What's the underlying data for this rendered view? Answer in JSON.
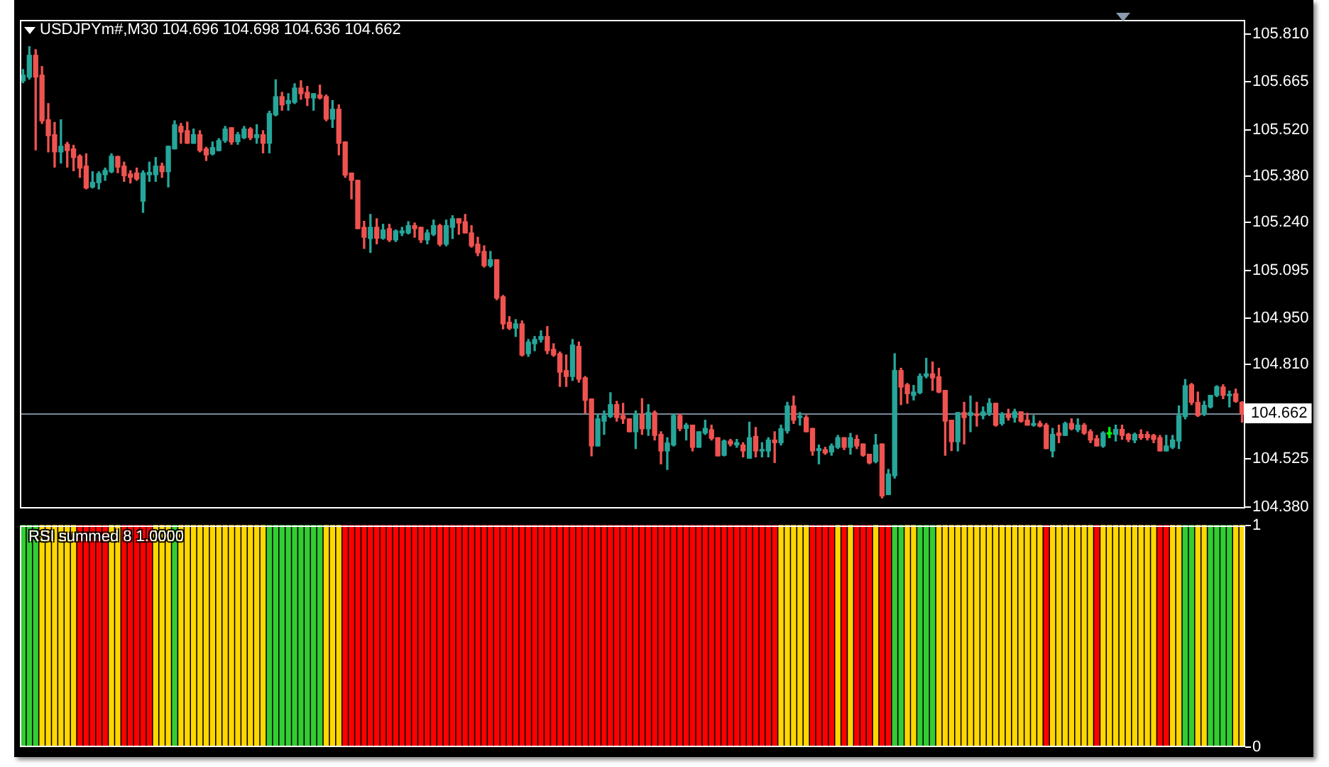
{
  "chart_data": [
    {
      "type": "candlestick",
      "title": "USDJPYm#,M30 104.696 104.698 104.636 104.662",
      "categories": [
        null,
        null,
        null,
        null,
        null,
        null,
        null,
        null,
        null,
        null,
        null,
        null,
        null,
        null,
        null,
        null,
        null,
        null,
        null,
        null,
        null,
        null,
        null,
        null,
        null,
        null,
        null,
        null,
        null,
        null,
        null,
        null,
        null,
        null,
        null,
        null,
        null,
        null,
        null,
        null,
        null,
        null,
        null,
        null,
        null,
        null,
        null,
        null,
        null,
        null,
        null,
        null,
        null,
        null,
        null,
        null,
        null,
        null,
        null,
        null,
        null,
        null,
        null,
        null,
        null,
        null,
        null,
        null,
        null,
        null,
        null,
        null,
        null,
        null,
        null,
        null,
        null,
        null,
        null,
        null,
        null,
        null,
        null,
        null,
        null,
        null,
        null,
        null,
        null,
        null,
        null,
        null,
        null,
        null,
        null,
        null,
        null,
        null,
        null,
        null,
        null,
        null,
        null,
        null,
        null,
        null,
        null,
        null,
        null,
        null,
        null,
        null,
        null,
        null,
        null,
        null,
        null,
        null,
        null,
        null,
        null,
        null,
        null,
        null,
        null,
        null,
        null,
        null,
        null,
        null,
        null,
        null,
        null,
        null,
        null,
        null,
        null,
        null,
        null,
        null,
        null,
        null,
        null,
        null,
        null,
        null,
        null,
        null,
        null,
        null,
        null,
        null,
        null,
        null,
        null,
        null,
        null,
        null,
        null,
        null,
        null,
        null,
        null,
        null,
        null,
        null,
        null,
        null,
        null,
        null,
        null,
        null,
        null,
        null,
        null,
        null,
        null,
        null,
        null,
        null,
        null,
        null,
        null,
        null,
        null,
        null,
        null,
        null,
        null,
        null,
        null,
        null,
        null,
        null
      ],
      "ohlc": [
        [
          105.668,
          105.702,
          105.662,
          105.685
        ],
        [
          105.679,
          105.771,
          105.673,
          105.745
        ],
        [
          105.745,
          105.762,
          105.459,
          105.679
        ],
        [
          105.685,
          105.711,
          105.539,
          105.547
        ],
        [
          105.55,
          105.599,
          105.453,
          105.502
        ],
        [
          105.505,
          105.542,
          105.407,
          105.453
        ],
        [
          105.453,
          105.55,
          105.419,
          105.47
        ],
        [
          105.476,
          105.482,
          105.407,
          105.457
        ],
        [
          105.462,
          105.473,
          105.396,
          105.436
        ],
        [
          105.44,
          105.444,
          105.376,
          105.404
        ],
        [
          105.41,
          105.447,
          105.341,
          105.344
        ],
        [
          105.347,
          105.393,
          105.344,
          105.361
        ],
        [
          105.36,
          105.393,
          105.341,
          105.387
        ],
        [
          105.384,
          105.404,
          105.367,
          105.397
        ],
        [
          105.393,
          105.447,
          105.39,
          105.44
        ],
        [
          105.439,
          105.44,
          105.39,
          105.407
        ],
        [
          105.41,
          105.422,
          105.364,
          105.381
        ],
        [
          105.386,
          105.396,
          105.359,
          105.376
        ],
        [
          105.389,
          105.404,
          105.367,
          105.371
        ],
        [
          105.304,
          105.396,
          105.27,
          105.389
        ],
        [
          105.384,
          105.422,
          105.364,
          105.391
        ],
        [
          105.384,
          105.436,
          105.364,
          105.41
        ],
        [
          105.41,
          105.419,
          105.376,
          105.393
        ],
        [
          105.393,
          105.47,
          105.347,
          105.47
        ],
        [
          105.462,
          105.547,
          105.462,
          105.535
        ],
        [
          105.53,
          105.539,
          105.479,
          105.513
        ],
        [
          105.517,
          105.543,
          105.479,
          105.479
        ],
        [
          105.479,
          105.522,
          105.479,
          105.505
        ],
        [
          105.505,
          105.517,
          105.453,
          105.457
        ],
        [
          105.462,
          105.467,
          105.427,
          105.444
        ],
        [
          105.447,
          105.483,
          105.444,
          105.466
        ],
        [
          105.457,
          105.493,
          105.456,
          105.487
        ],
        [
          105.487,
          105.53,
          105.482,
          105.522
        ],
        [
          105.526,
          105.526,
          105.476,
          105.483
        ],
        [
          105.484,
          105.512,
          105.476,
          105.505
        ],
        [
          105.496,
          105.53,
          105.493,
          105.522
        ],
        [
          105.522,
          105.526,
          105.49,
          105.496
        ],
        [
          105.496,
          105.535,
          105.479,
          105.505
        ],
        [
          105.505,
          105.517,
          105.45,
          105.479
        ],
        [
          105.479,
          105.576,
          105.45,
          105.569
        ],
        [
          105.565,
          105.671,
          105.562,
          105.62
        ],
        [
          105.62,
          105.633,
          105.579,
          105.595
        ],
        [
          105.599,
          105.629,
          105.579,
          105.608
        ],
        [
          105.603,
          105.659,
          105.599,
          105.646
        ],
        [
          105.646,
          105.668,
          105.612,
          105.629
        ],
        [
          105.633,
          105.651,
          105.593,
          105.616
        ],
        [
          105.616,
          105.629,
          105.579,
          105.629
        ],
        [
          105.625,
          105.655,
          105.613,
          105.616
        ],
        [
          105.62,
          105.625,
          105.547,
          105.552
        ],
        [
          105.552,
          105.608,
          105.527,
          105.582
        ],
        [
          105.582,
          105.595,
          105.444,
          105.479
        ],
        [
          105.483,
          105.483,
          105.376,
          105.383
        ],
        [
          105.389,
          105.389,
          105.311,
          105.367
        ],
        [
          105.367,
          105.367,
          105.221,
          105.221
        ],
        [
          105.225,
          105.243,
          105.161,
          105.195
        ],
        [
          105.191,
          105.264,
          105.149,
          105.225
        ],
        [
          105.225,
          105.251,
          105.175,
          105.192
        ],
        [
          105.192,
          105.234,
          105.189,
          105.217
        ],
        [
          105.221,
          105.234,
          105.182,
          105.187
        ],
        [
          105.187,
          105.217,
          105.182,
          105.214
        ],
        [
          105.208,
          105.225,
          105.2,
          105.214
        ],
        [
          105.208,
          105.242,
          105.205,
          105.23
        ],
        [
          105.23,
          105.238,
          105.195,
          105.221
        ],
        [
          105.225,
          105.225,
          105.179,
          105.187
        ],
        [
          105.187,
          105.217,
          105.175,
          105.208
        ],
        [
          105.204,
          105.247,
          105.2,
          105.23
        ],
        [
          105.23,
          105.234,
          105.169,
          105.174
        ],
        [
          105.174,
          105.247,
          105.169,
          105.23
        ],
        [
          105.225,
          105.26,
          105.191,
          105.251
        ],
        [
          105.251,
          105.251,
          105.204,
          105.238
        ],
        [
          105.242,
          105.264,
          105.208,
          105.208
        ],
        [
          105.208,
          105.23,
          105.165,
          105.169
        ],
        [
          105.174,
          105.195,
          105.139,
          105.148
        ],
        [
          105.152,
          105.169,
          105.105,
          105.109
        ],
        [
          105.109,
          105.152,
          105.105,
          105.127
        ],
        [
          105.127,
          105.127,
          105.006,
          105.011
        ],
        [
          105.015,
          105.019,
          104.918,
          104.933
        ],
        [
          104.938,
          104.955,
          104.916,
          104.92
        ],
        [
          104.92,
          104.946,
          104.895,
          104.933
        ],
        [
          104.933,
          104.942,
          104.836,
          104.839
        ],
        [
          104.843,
          104.886,
          104.835,
          104.878
        ],
        [
          104.873,
          104.895,
          104.852,
          104.886
        ],
        [
          104.886,
          104.912,
          104.878,
          104.895
        ],
        [
          104.895,
          104.925,
          104.843,
          104.852
        ],
        [
          104.856,
          104.873,
          104.835,
          104.839
        ],
        [
          104.843,
          104.848,
          104.744,
          104.787
        ],
        [
          104.792,
          104.839,
          104.744,
          104.774
        ],
        [
          104.774,
          104.886,
          104.762,
          104.869
        ],
        [
          104.865,
          104.878,
          104.757,
          104.766
        ],
        [
          104.77,
          104.774,
          104.663,
          104.702
        ],
        [
          104.706,
          104.706,
          104.534,
          104.564
        ],
        [
          104.564,
          104.659,
          104.564,
          104.646
        ],
        [
          104.639,
          104.67,
          104.599,
          104.656
        ],
        [
          104.653,
          104.725,
          104.65,
          104.689
        ],
        [
          104.689,
          104.699,
          104.639,
          104.65
        ],
        [
          104.656,
          104.693,
          104.632,
          104.646
        ],
        [
          104.646,
          104.646,
          104.607,
          104.607
        ],
        [
          104.607,
          104.67,
          104.556,
          104.66
        ],
        [
          104.66,
          104.707,
          104.599,
          104.616
        ],
        [
          104.616,
          104.689,
          104.596,
          104.665
        ],
        [
          104.665,
          104.67,
          104.582,
          104.596
        ],
        [
          104.599,
          104.607,
          104.51,
          104.549
        ],
        [
          104.549,
          104.589,
          104.493,
          104.573
        ],
        [
          104.567,
          104.66,
          104.564,
          104.656
        ],
        [
          104.656,
          104.66,
          104.61,
          104.617
        ],
        [
          104.617,
          104.632,
          104.582,
          104.627
        ],
        [
          104.627,
          104.627,
          104.549,
          104.56
        ],
        [
          104.56,
          104.607,
          104.56,
          104.607
        ],
        [
          104.603,
          104.642,
          104.599,
          104.617
        ],
        [
          104.613,
          104.627,
          104.582,
          104.587
        ],
        [
          104.589,
          104.589,
          104.534,
          104.534
        ],
        [
          104.536,
          104.582,
          104.534,
          104.579
        ],
        [
          104.579,
          104.584,
          104.564,
          104.57
        ],
        [
          104.567,
          104.584,
          104.56,
          104.574
        ],
        [
          104.567,
          104.574,
          104.531,
          104.549
        ],
        [
          104.527,
          104.636,
          104.527,
          104.589
        ],
        [
          104.593,
          104.62,
          104.531,
          104.549
        ],
        [
          104.549,
          104.574,
          104.531,
          104.551
        ],
        [
          104.549,
          104.589,
          104.531,
          104.582
        ],
        [
          104.582,
          104.607,
          104.514,
          104.574
        ],
        [
          104.574,
          104.627,
          104.567,
          104.616
        ],
        [
          104.61,
          104.696,
          104.603,
          104.685
        ],
        [
          104.685,
          104.715,
          104.632,
          104.642
        ],
        [
          104.65,
          104.665,
          104.627,
          104.653
        ],
        [
          104.65,
          104.656,
          104.607,
          104.607
        ],
        [
          104.617,
          104.617,
          104.536,
          104.549
        ],
        [
          104.55,
          104.567,
          104.51,
          104.556
        ],
        [
          104.553,
          104.56,
          104.539,
          104.543
        ],
        [
          104.546,
          104.57,
          104.536,
          104.564
        ],
        [
          104.56,
          104.596,
          104.556,
          104.589
        ],
        [
          104.589,
          104.589,
          104.553,
          104.56
        ],
        [
          104.56,
          104.602,
          104.539,
          104.589
        ],
        [
          104.584,
          104.596,
          104.556,
          104.564
        ],
        [
          104.57,
          104.57,
          104.533,
          104.536
        ],
        [
          104.539,
          104.539,
          104.51,
          104.513
        ],
        [
          104.517,
          104.599,
          104.513,
          104.567
        ],
        [
          104.57,
          104.57,
          104.407,
          104.413
        ],
        [
          104.417,
          104.493,
          104.417,
          104.479
        ],
        [
          104.474,
          104.843,
          104.467,
          104.792
        ],
        [
          104.792,
          104.799,
          104.689,
          104.742
        ],
        [
          104.749,
          104.753,
          104.693,
          104.722
        ],
        [
          104.717,
          104.747,
          104.703,
          104.727
        ],
        [
          104.725,
          104.782,
          104.722,
          104.775
        ],
        [
          104.775,
          104.829,
          104.77,
          104.782
        ],
        [
          104.782,
          104.818,
          104.732,
          104.77
        ],
        [
          104.773,
          104.799,
          104.725,
          104.727
        ],
        [
          104.732,
          104.732,
          104.536,
          104.639
        ],
        [
          104.642,
          104.642,
          104.55,
          104.577
        ],
        [
          104.577,
          104.665,
          104.549,
          104.665
        ],
        [
          104.665,
          104.696,
          104.57,
          104.65
        ],
        [
          104.656,
          104.715,
          104.607,
          104.665
        ],
        [
          104.66,
          104.696,
          104.624,
          104.656
        ],
        [
          104.656,
          104.682,
          104.646,
          104.667
        ],
        [
          104.665,
          104.707,
          104.656,
          104.693
        ],
        [
          104.693,
          104.693,
          104.624,
          104.627
        ],
        [
          104.632,
          104.665,
          104.627,
          104.66
        ],
        [
          104.66,
          104.675,
          104.642,
          104.65
        ],
        [
          104.65,
          104.675,
          104.636,
          104.667
        ],
        [
          104.667,
          104.667,
          104.636,
          104.639
        ],
        [
          104.642,
          104.663,
          104.627,
          104.627
        ],
        [
          104.627,
          104.656,
          104.624,
          104.632
        ],
        [
          104.632,
          104.639,
          104.622,
          104.624
        ],
        [
          104.627,
          104.632,
          104.556,
          104.556
        ],
        [
          104.549,
          104.617,
          104.531,
          104.599
        ],
        [
          104.603,
          104.627,
          104.574,
          104.596
        ],
        [
          104.596,
          104.636,
          104.596,
          104.632
        ],
        [
          104.632,
          104.646,
          104.613,
          104.616
        ],
        [
          104.613,
          104.646,
          104.607,
          104.627
        ],
        [
          104.627,
          104.632,
          104.599,
          104.603
        ],
        [
          104.607,
          104.613,
          104.574,
          104.582
        ],
        [
          104.586,
          104.596,
          104.564,
          104.564
        ],
        [
          104.564,
          104.607,
          104.56,
          104.603
        ],
        [
          104.6,
          104.62,
          104.589,
          104.6
        ],
        [
          104.599,
          104.627,
          104.579,
          104.614
        ],
        [
          104.614,
          104.627,
          104.584,
          104.596
        ],
        [
          104.599,
          104.602,
          104.577,
          104.584
        ],
        [
          104.582,
          104.603,
          104.574,
          104.599
        ],
        [
          104.599,
          104.613,
          104.584,
          104.589
        ],
        [
          104.599,
          104.607,
          104.582,
          104.589
        ],
        [
          104.596,
          104.599,
          104.574,
          104.584
        ],
        [
          104.589,
          104.596,
          104.549,
          104.549
        ],
        [
          104.549,
          104.596,
          104.549,
          104.564
        ],
        [
          104.56,
          104.596,
          104.556,
          104.582
        ],
        [
          104.579,
          104.685,
          104.556,
          104.656
        ],
        [
          104.653,
          104.765,
          104.646,
          104.746
        ],
        [
          104.749,
          104.753,
          104.689,
          104.696
        ],
        [
          104.696,
          104.727,
          104.653,
          104.656
        ],
        [
          104.66,
          104.699,
          104.656,
          104.687
        ],
        [
          104.682,
          104.717,
          104.679,
          104.717
        ],
        [
          104.717,
          104.746,
          104.713,
          104.743
        ],
        [
          104.742,
          104.749,
          104.707,
          104.717
        ],
        [
          104.716,
          104.73,
          104.682,
          104.719
        ],
        [
          104.722,
          104.736,
          104.696,
          104.699
        ],
        [
          104.696,
          104.698,
          104.636,
          104.662
        ]
      ],
      "colors": [
        "#26a69a",
        "#26a69a",
        "#ef5350",
        "#ef5350",
        "#ef5350",
        "#ef5350",
        "#26a69a",
        "#ef5350",
        "#ef5350",
        "#ef5350",
        "#ef5350",
        "#26a69a",
        "#26a69a",
        "#26a69a",
        "#26a69a",
        "#ef5350",
        "#ef5350",
        "#ef5350",
        "#ef5350",
        "#26a69a",
        "#26a69a",
        "#26a69a",
        "#ef5350",
        "#26a69a",
        "#26a69a",
        "#ef5350",
        "#ef5350",
        "#26a69a",
        "#ef5350",
        "#ef5350",
        "#26a69a",
        "#26a69a",
        "#26a69a",
        "#ef5350",
        "#26a69a",
        "#26a69a",
        "#ef5350",
        "#26a69a",
        "#ef5350",
        "#26a69a",
        "#26a69a",
        "#ef5350",
        "#26a69a",
        "#26a69a",
        "#ef5350",
        "#ef5350",
        "#26a69a",
        "#ef5350",
        "#ef5350",
        "#26a69a",
        "#ef5350",
        "#ef5350",
        "#ef5350",
        "#ef5350",
        "#ef5350",
        "#26a69a",
        "#ef5350",
        "#26a69a",
        "#ef5350",
        "#26a69a",
        "#26a69a",
        "#26a69a",
        "#ef5350",
        "#ef5350",
        "#26a69a",
        "#26a69a",
        "#ef5350",
        "#26a69a",
        "#26a69a",
        "#ef5350",
        "#ef5350",
        "#ef5350",
        "#ef5350",
        "#ef5350",
        "#26a69a",
        "#ef5350",
        "#ef5350",
        "#ef5350",
        "#26a69a",
        "#ef5350",
        "#26a69a",
        "#26a69a",
        "#26a69a",
        "#ef5350",
        "#ef5350",
        "#ef5350",
        "#ef5350",
        "#26a69a",
        "#ef5350",
        "#ef5350",
        "#ef5350",
        "#26a69a",
        "#26a69a",
        "#26a69a",
        "#ef5350",
        "#ef5350",
        "#ef5350",
        "#26a69a",
        "#ef5350",
        "#26a69a",
        "#ef5350",
        "#ef5350",
        "#26a69a",
        "#26a69a",
        "#ef5350",
        "#26a69a",
        "#ef5350",
        "#26a69a",
        "#26a69a",
        "#ef5350",
        "#ef5350",
        "#26a69a",
        "#ef5350",
        "#26a69a",
        "#ef5350",
        "#26a69a",
        "#ef5350",
        "#26a69a",
        "#26a69a",
        "#ef5350",
        "#26a69a",
        "#26a69a",
        "#ef5350",
        "#26a69a",
        "#ef5350",
        "#ef5350",
        "#26a69a",
        "#ef5350",
        "#26a69a",
        "#26a69a",
        "#ef5350",
        "#26a69a",
        "#ef5350",
        "#ef5350",
        "#ef5350",
        "#26a69a",
        "#ef5350",
        "#26a69a",
        "#26a69a",
        "#ef5350",
        "#ef5350",
        "#26a69a",
        "#26a69a",
        "#26a69a",
        "#ef5350",
        "#ef5350",
        "#ef5350",
        "#ef5350",
        "#26a69a",
        "#ef5350",
        "#26a69a",
        "#ef5350",
        "#26a69a",
        "#26a69a",
        "#ef5350",
        "#26a69a",
        "#ef5350",
        "#26a69a",
        "#ef5350",
        "#ef5350",
        "#26a69a",
        "#ef5350",
        "#ef5350",
        "#26a69a",
        "#ef5350",
        "#26a69a",
        "#ef5350",
        "#26a69a",
        "#ef5350",
        "#ef5350",
        "#ef5350",
        "#26a69a",
        "#00ff00",
        "#26a69a",
        "#ef5350",
        "#ef5350",
        "#26a69a",
        "#ef5350",
        "#ef5350",
        "#ef5350",
        "#ef5350",
        "#26a69a",
        "#26a69a",
        "#26a69a",
        "#26a69a",
        "#ef5350",
        "#ef5350",
        "#26a69a",
        "#26a69a",
        "#26a69a",
        "#ef5350",
        "#26a69a",
        "#ef5350",
        "#ef5350"
      ],
      "ylim": [
        104.375,
        105.852
      ],
      "yticks": [
        {
          "value": 105.81,
          "label": "105.810"
        },
        105.665,
        {
          "value": 105.52,
          "label": "105.520"
        },
        {
          "value": 105.38,
          "label": "105.380"
        },
        {
          "value": 105.24,
          "label": "105.240"
        },
        105.095,
        {
          "value": 104.95,
          "label": "104.950"
        },
        {
          "value": 104.81,
          "label": "104.810"
        },
        104.525,
        {
          "value": 104.38,
          "label": "104.380"
        }
      ],
      "ref_lines": [
        {
          "axis": "y",
          "value": 104.662,
          "label": "104.662",
          "color": "#778899"
        }
      ]
    },
    {
      "type": "bar",
      "title": "RSI summed 8 1.0000",
      "categories": [
        null,
        null,
        null,
        null,
        null,
        null,
        null,
        null,
        null,
        null,
        null,
        null,
        null,
        null,
        null,
        null,
        null,
        null,
        null,
        null,
        null,
        null,
        null,
        null,
        null,
        null,
        null,
        null,
        null,
        null,
        null,
        null,
        null,
        null,
        null,
        null,
        null,
        null,
        null,
        null,
        null,
        null,
        null,
        null,
        null,
        null,
        null,
        null,
        null,
        null,
        null,
        null,
        null,
        null,
        null,
        null,
        null,
        null,
        null,
        null,
        null,
        null,
        null,
        null,
        null,
        null,
        null,
        null,
        null,
        null,
        null,
        null,
        null,
        null,
        null,
        null,
        null,
        null,
        null,
        null,
        null,
        null,
        null,
        null,
        null,
        null,
        null,
        null,
        null,
        null,
        null,
        null,
        null,
        null,
        null,
        null,
        null,
        null,
        null,
        null,
        null,
        null,
        null,
        null,
        null,
        null,
        null,
        null,
        null,
        null,
        null,
        null,
        null,
        null,
        null,
        null,
        null,
        null,
        null,
        null,
        null,
        null,
        null,
        null,
        null,
        null,
        null,
        null,
        null,
        null,
        null,
        null,
        null,
        null,
        null,
        null,
        null,
        null,
        null,
        null,
        null,
        null,
        null,
        null,
        null,
        null,
        null,
        null,
        null,
        null,
        null,
        null,
        null,
        null,
        null,
        null,
        null,
        null,
        null,
        null,
        null,
        null,
        null,
        null,
        null,
        null,
        null,
        null,
        null,
        null,
        null,
        null,
        null,
        null,
        null,
        null,
        null,
        null,
        null,
        null,
        null,
        null,
        null,
        null,
        null,
        null,
        null,
        null,
        null,
        null,
        null,
        null,
        null,
        null
      ],
      "values": [
        1,
        1,
        1,
        1,
        1,
        1,
        1,
        1,
        1,
        1,
        1,
        1,
        1,
        1,
        1,
        1,
        1,
        1,
        1,
        1,
        1,
        1,
        1,
        1,
        1,
        1,
        1,
        1,
        1,
        1,
        1,
        1,
        1,
        1,
        1,
        1,
        1,
        1,
        1,
        1,
        1,
        1,
        1,
        1,
        1,
        1,
        1,
        1,
        1,
        1,
        1,
        1,
        1,
        1,
        1,
        1,
        1,
        1,
        1,
        1,
        1,
        1,
        1,
        1,
        1,
        1,
        1,
        1,
        1,
        1,
        1,
        1,
        1,
        1,
        1,
        1,
        1,
        1,
        1,
        1,
        1,
        1,
        1,
        1,
        1,
        1,
        1,
        1,
        1,
        1,
        1,
        1,
        1,
        1,
        1,
        1,
        1,
        1,
        1,
        1,
        1,
        1,
        1,
        1,
        1,
        1,
        1,
        1,
        1,
        1,
        1,
        1,
        1,
        1,
        1,
        1,
        1,
        1,
        1,
        1,
        1,
        1,
        1,
        1,
        1,
        1,
        1,
        1,
        1,
        1,
        1,
        1,
        1,
        1,
        1,
        1,
        1,
        1,
        1,
        1,
        1,
        1,
        1,
        1,
        1,
        1,
        1,
        1,
        1,
        1,
        1,
        1,
        1,
        1,
        1,
        1,
        1,
        1,
        1,
        1,
        1,
        1,
        1,
        1,
        1,
        1,
        1,
        1,
        1,
        1,
        1,
        1,
        1,
        1,
        1,
        1,
        1,
        1,
        1,
        1,
        1,
        1,
        1,
        1,
        1,
        1,
        1,
        1,
        1,
        1,
        1,
        1,
        1,
        1
      ],
      "colors": [
        "#32cd32",
        "#32cd32",
        "#32cd32",
        "#ffd700",
        "#ffd700",
        "#ffd700",
        "#ffd700",
        "#ffd700",
        "#ffd700",
        "#ff0000",
        "#ff0000",
        "#ff0000",
        "#ff0000",
        "#ff0000",
        "#ffd700",
        "#ffd700",
        "#ff0000",
        "#ff0000",
        "#ff0000",
        "#ff0000",
        "#ff0000",
        "#ffd700",
        "#ffd700",
        "#ffd700",
        "#32cd32",
        "#ffd700",
        "#ffd700",
        "#ffd700",
        "#ffd700",
        "#ffd700",
        "#ffd700",
        "#ffd700",
        "#ffd700",
        "#ffd700",
        "#ffd700",
        "#ffd700",
        "#ffd700",
        "#ffd700",
        "#ffd700",
        "#32cd32",
        "#32cd32",
        "#32cd32",
        "#32cd32",
        "#32cd32",
        "#32cd32",
        "#32cd32",
        "#32cd32",
        "#32cd32",
        "#ffd700",
        "#ffd700",
        "#ffd700",
        "#ff0000",
        "#ff0000",
        "#ff0000",
        "#ff0000",
        "#ff0000",
        "#ff0000",
        "#ff0000",
        "#ff0000",
        "#ff0000",
        "#ff0000",
        "#ff0000",
        "#ff0000",
        "#ff0000",
        "#ff0000",
        "#ff0000",
        "#ff0000",
        "#ff0000",
        "#ff0000",
        "#ff0000",
        "#ff0000",
        "#ff0000",
        "#ff0000",
        "#ff0000",
        "#ff0000",
        "#ff0000",
        "#ff0000",
        "#ff0000",
        "#ff0000",
        "#ff0000",
        "#ff0000",
        "#ff0000",
        "#ff0000",
        "#ff0000",
        "#ff0000",
        "#ff0000",
        "#ff0000",
        "#ff0000",
        "#ff0000",
        "#ff0000",
        "#ff0000",
        "#ff0000",
        "#ff0000",
        "#ff0000",
        "#ff0000",
        "#ff0000",
        "#ff0000",
        "#ff0000",
        "#ff0000",
        "#ff0000",
        "#ff0000",
        "#ff0000",
        "#ff0000",
        "#ff0000",
        "#ff0000",
        "#ff0000",
        "#ff0000",
        "#ff0000",
        "#ff0000",
        "#ff0000",
        "#ff0000",
        "#ff0000",
        "#ff0000",
        "#ff0000",
        "#ff0000",
        "#ff0000",
        "#ff0000",
        "#ff0000",
        "#ff0000",
        "#ff0000",
        "#ffd700",
        "#ffd700",
        "#ffd700",
        "#ffd700",
        "#ffd700",
        "#ff0000",
        "#ff0000",
        "#ff0000",
        "#ff0000",
        "#ffd700",
        "#ff0000",
        "#ffd700",
        "#ff0000",
        "#ff0000",
        "#ff0000",
        "#ffd700",
        "#ff0000",
        "#ff0000",
        "#32cd32",
        "#32cd32",
        "#ffd700",
        "#ffd700",
        "#32cd32",
        "#32cd32",
        "#32cd32",
        "#ffd700",
        "#ffd700",
        "#ffd700",
        "#ffd700",
        "#ffd700",
        "#ffd700",
        "#ffd700",
        "#ffd700",
        "#ffd700",
        "#ffd700",
        "#ffd700",
        "#ffd700",
        "#ffd700",
        "#ffd700",
        "#ffd700",
        "#ffd700",
        "#ffd700",
        "#ff0000",
        "#ffd700",
        "#ffd700",
        "#ffd700",
        "#ffd700",
        "#ffd700",
        "#ffd700",
        "#ffd700",
        "#ff0000",
        "#ffd700",
        "#ffd700",
        "#ffd700",
        "#ffd700",
        "#ffd700",
        "#ffd700",
        "#ffd700",
        "#ffd700",
        "#ffd700",
        "#ff0000",
        "#ff0000",
        "#ffd700",
        "#ffd700",
        "#32cd32",
        "#32cd32",
        "#ffd700",
        "#ffd700",
        "#32cd32",
        "#32cd32",
        "#32cd32",
        "#32cd32",
        "#ffd700",
        "#ffd700"
      ],
      "ylim": [
        0,
        1
      ],
      "yticks": [
        0,
        1
      ]
    }
  ]
}
